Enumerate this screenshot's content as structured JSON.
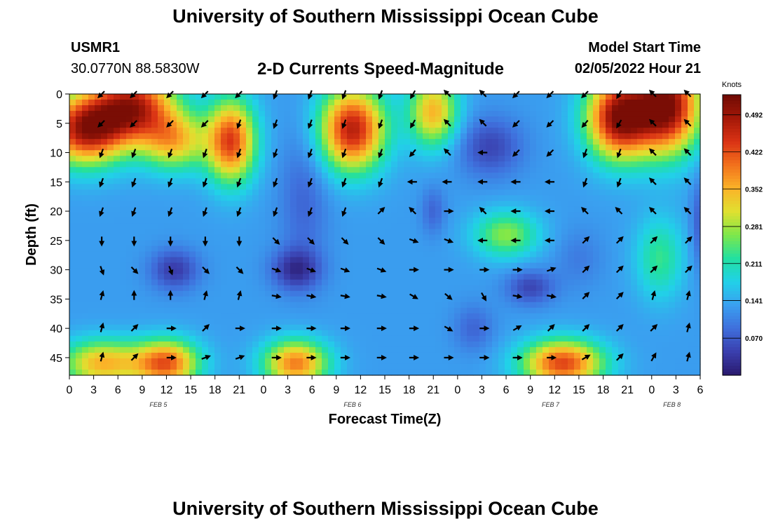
{
  "page_title": "University of Southern Mississippi Ocean Cube",
  "station": {
    "id": "USMR1",
    "coords": "30.0770N  88.5830W"
  },
  "model_start": {
    "label": "Model Start Time",
    "value": "02/05/2022 Hour 21"
  },
  "chart_title": "2-D Currents Speed-Magnitude",
  "footer_title": "University of Southern Mississippi Ocean Cube",
  "colorbar": {
    "unit_label": "Knots",
    "ticks": [
      "0.492",
      "0.422",
      "0.352",
      "0.281",
      "0.211",
      "0.141",
      "0.070"
    ],
    "tick_values": [
      0.492,
      0.422,
      0.352,
      0.281,
      0.211,
      0.141,
      0.07
    ],
    "range": [
      0.0,
      0.53
    ],
    "colors": [
      "#2a1a6e",
      "#3a3fae",
      "#3f6fdc",
      "#3aa0f0",
      "#21d1e8",
      "#22e0a0",
      "#7ee84a",
      "#e0e030",
      "#fbb228",
      "#f2701c",
      "#d93214",
      "#a31808",
      "#6e0a04"
    ]
  },
  "chart_data": {
    "type": "heatmap",
    "title": "2-D Currents Speed-Magnitude",
    "xlabel": "Forecast Time(Z)",
    "ylabel": "Depth (ft)",
    "xlim": [
      0,
      78
    ],
    "ylim": [
      48,
      0
    ],
    "x_tick_labels": [
      "0",
      "3",
      "6",
      "9",
      "12",
      "15",
      "18",
      "21",
      "0",
      "3",
      "6",
      "9",
      "12",
      "15",
      "18",
      "21",
      "0",
      "3",
      "6",
      "9",
      "12",
      "15",
      "18",
      "21",
      "0",
      "3",
      "6"
    ],
    "x_tick_hours": [
      0,
      3,
      6,
      9,
      12,
      15,
      18,
      21,
      24,
      27,
      30,
      33,
      36,
      39,
      42,
      45,
      48,
      51,
      54,
      57,
      60,
      63,
      66,
      69,
      72,
      75,
      78
    ],
    "y_tick_labels": [
      "0",
      "5",
      "10",
      "15",
      "20",
      "25",
      "30",
      "35",
      "40",
      "45"
    ],
    "y_ticks": [
      0,
      5,
      10,
      15,
      20,
      25,
      30,
      35,
      40,
      45
    ],
    "day_labels": [
      {
        "text": "FEB 5",
        "hour": 11
      },
      {
        "text": "FEB 6",
        "hour": 35
      },
      {
        "text": "FEB 7",
        "hour": 59.5
      },
      {
        "text": "FEB 8",
        "hour": 74.5
      }
    ],
    "speed_blobs": [
      {
        "hour": 2,
        "depth": 6,
        "sx": 5,
        "sy": 6,
        "amp": 0.35
      },
      {
        "hour": 8,
        "depth": 2,
        "sx": 5,
        "sy": 6,
        "amp": 0.32
      },
      {
        "hour": 20,
        "depth": 8,
        "sx": 3,
        "sy": 7,
        "amp": 0.3
      },
      {
        "hour": 13,
        "depth": 8,
        "sx": 4,
        "sy": 5,
        "amp": 0.2
      },
      {
        "hour": 35,
        "depth": 6,
        "sx": 4,
        "sy": 7,
        "amp": 0.34
      },
      {
        "hour": 45,
        "depth": 3,
        "sx": 3,
        "sy": 6,
        "amp": 0.22
      },
      {
        "hour": 68,
        "depth": 4,
        "sx": 4,
        "sy": 7,
        "amp": 0.38
      },
      {
        "hour": 74,
        "depth": 2,
        "sx": 4,
        "sy": 8,
        "amp": 0.38
      },
      {
        "hour": 4,
        "depth": 46,
        "sx": 5,
        "sy": 4,
        "amp": 0.22
      },
      {
        "hour": 12,
        "depth": 46,
        "sx": 4,
        "sy": 4,
        "amp": 0.28
      },
      {
        "hour": 28,
        "depth": 46,
        "sx": 4,
        "sy": 4,
        "amp": 0.26
      },
      {
        "hour": 61,
        "depth": 46,
        "sx": 5,
        "sy": 4,
        "amp": 0.3
      },
      {
        "hour": 54,
        "depth": 24,
        "sx": 4,
        "sy": 4,
        "amp": 0.14
      },
      {
        "hour": 73,
        "depth": 28,
        "sx": 3,
        "sy": 7,
        "amp": 0.1
      }
    ],
    "slow_blobs": [
      {
        "hour": 13,
        "depth": 30,
        "sx": 3,
        "sy": 3.5,
        "amp": 0.09
      },
      {
        "hour": 28,
        "depth": 30,
        "sx": 3,
        "sy": 3.5,
        "amp": 0.1
      },
      {
        "hour": 29,
        "depth": 18,
        "sx": 3,
        "sy": 12,
        "amp": 0.05
      },
      {
        "hour": 45,
        "depth": 20,
        "sx": 1.5,
        "sy": 4,
        "amp": 0.05
      },
      {
        "hour": 52,
        "depth": 9,
        "sx": 4,
        "sy": 5,
        "amp": 0.08
      },
      {
        "hour": 57,
        "depth": 33,
        "sx": 3,
        "sy": 3,
        "amp": 0.08
      },
      {
        "hour": 50,
        "depth": 40,
        "sx": 2.5,
        "sy": 4,
        "amp": 0.05
      },
      {
        "hour": 63,
        "depth": 28,
        "sx": 3,
        "sy": 5,
        "amp": 0.03
      },
      {
        "hour": 78,
        "depth": 22,
        "sx": 1.2,
        "sy": 8,
        "amp": 0.06
      }
    ],
    "speed_base_knots": 0.13,
    "arrow_columns_hours": [
      4,
      8,
      12.5,
      16.8,
      21,
      25.5,
      29.8,
      34,
      38.5,
      42.5,
      46.8,
      51.2,
      55.3,
      59.5,
      63.8,
      68,
      72.2,
      76.5
    ],
    "arrow_rows_ft": [
      0,
      5,
      10,
      15,
      20,
      25,
      30,
      34.5,
      40,
      45
    ],
    "arrow_directions_deg": [
      [
        225,
        225,
        225,
        225,
        225,
        200,
        200,
        200,
        200,
        210,
        315,
        315,
        225,
        225,
        225,
        210,
        315,
        315
      ],
      [
        225,
        225,
        225,
        225,
        200,
        200,
        200,
        200,
        200,
        210,
        315,
        315,
        225,
        225,
        220,
        210,
        315,
        315
      ],
      [
        200,
        200,
        200,
        200,
        200,
        200,
        200,
        200,
        200,
        220,
        315,
        270,
        225,
        225,
        200,
        200,
        315,
        315
      ],
      [
        200,
        200,
        200,
        200,
        200,
        200,
        200,
        200,
        200,
        270,
        270,
        270,
        270,
        270,
        200,
        200,
        315,
        315
      ],
      [
        200,
        200,
        200,
        200,
        200,
        200,
        200,
        200,
        45,
        315,
        90,
        315,
        270,
        270,
        315,
        315,
        315,
        315
      ],
      [
        180,
        180,
        180,
        180,
        180,
        135,
        135,
        135,
        135,
        110,
        110,
        270,
        270,
        270,
        45,
        45,
        45,
        45
      ],
      [
        160,
        135,
        160,
        135,
        135,
        110,
        110,
        110,
        110,
        90,
        90,
        90,
        90,
        70,
        45,
        45,
        45,
        45
      ],
      [
        15,
        0,
        0,
        15,
        15,
        100,
        100,
        100,
        100,
        120,
        130,
        150,
        100,
        100,
        45,
        45,
        15,
        15
      ],
      [
        15,
        45,
        90,
        45,
        90,
        90,
        90,
        90,
        90,
        90,
        120,
        90,
        60,
        45,
        45,
        45,
        45,
        15
      ],
      [
        15,
        45,
        90,
        70,
        70,
        90,
        90,
        90,
        90,
        90,
        90,
        90,
        90,
        90,
        60,
        45,
        30,
        15
      ]
    ]
  }
}
